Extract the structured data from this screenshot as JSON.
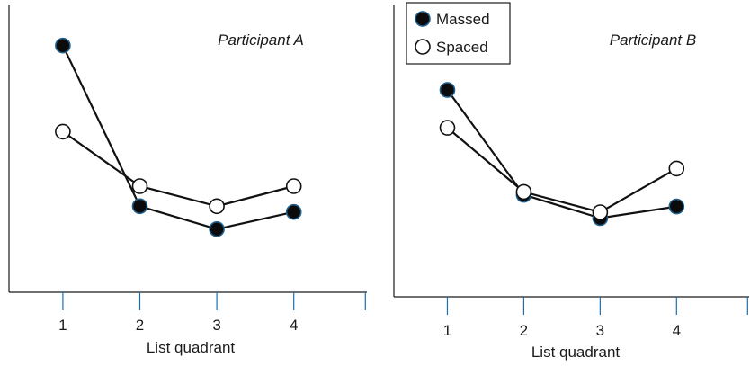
{
  "chart_data": [
    {
      "type": "line",
      "title": "Participant A",
      "xlabel": "List quadrant",
      "ylabel": "",
      "x": [
        1,
        2,
        3,
        4
      ],
      "xlim": [
        0.3,
        4.95
      ],
      "ylim": [
        0,
        1
      ],
      "series": [
        {
          "name": "Massed",
          "values": [
            0.86,
            0.3,
            0.22,
            0.28
          ],
          "marker": "filled",
          "color": "#0b0b0b",
          "edge": "#1f5f8b"
        },
        {
          "name": "Spaced",
          "values": [
            0.56,
            0.37,
            0.3,
            0.37
          ],
          "marker": "open",
          "color": "#ffffff",
          "edge": "#111111"
        }
      ]
    },
    {
      "type": "line",
      "title": "Participant B",
      "xlabel": "List quadrant",
      "ylabel": "",
      "x": [
        1,
        2,
        3,
        4
      ],
      "xlim": [
        0.3,
        4.95
      ],
      "ylim": [
        0,
        1
      ],
      "series": [
        {
          "name": "Massed",
          "values": [
            0.71,
            0.35,
            0.27,
            0.31
          ],
          "marker": "filled",
          "color": "#0b0b0b",
          "edge": "#1f5f8b"
        },
        {
          "name": "Spaced",
          "values": [
            0.58,
            0.36,
            0.29,
            0.44
          ],
          "marker": "open",
          "color": "#ffffff",
          "edge": "#111111"
        }
      ]
    }
  ],
  "legend": {
    "placement": "top-left of right panel",
    "items": [
      {
        "label": "Massed",
        "marker": "filled"
      },
      {
        "label": "Spaced",
        "marker": "open"
      }
    ]
  }
}
